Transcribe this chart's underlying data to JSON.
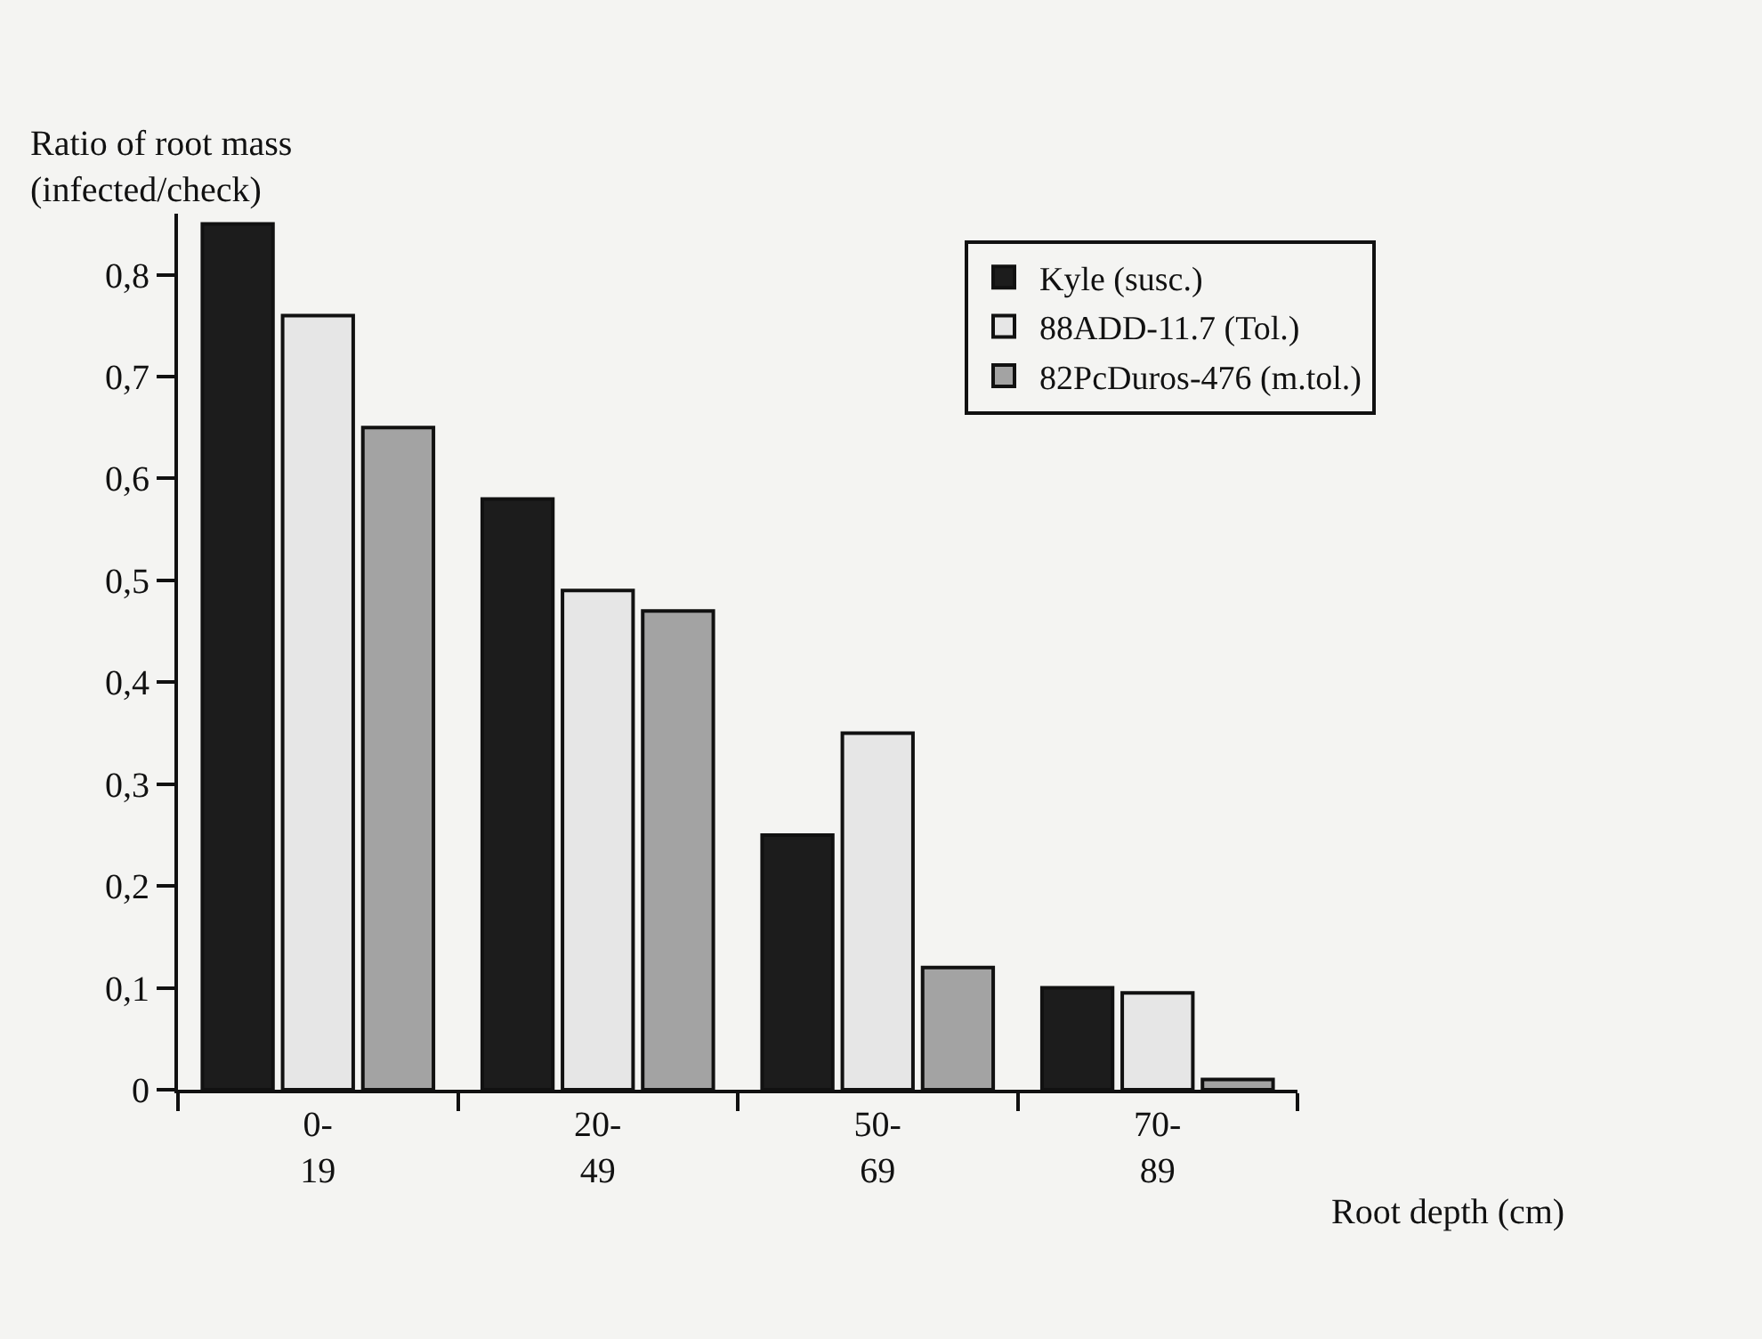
{
  "chart_data": {
    "type": "bar",
    "ylabel": "Ratio of root mass\n(infected/check)",
    "xlabel": "Root depth (cm)",
    "categories": [
      "0-\n19",
      "20-\n49",
      "50-\n69",
      "70-\n89"
    ],
    "series": [
      {
        "name": "Kyle (susc.)",
        "color": "#1c1c1c",
        "values": [
          0.85,
          0.58,
          0.25,
          0.1
        ]
      },
      {
        "name": "88ADD-11.7 (Tol.)",
        "color": "#e6e6e6",
        "values": [
          0.76,
          0.49,
          0.35,
          0.095
        ]
      },
      {
        "name": "82PcDuros-476 (m.tol.)",
        "color": "#a3a3a3",
        "values": [
          0.65,
          0.47,
          0.12,
          0.01
        ]
      }
    ],
    "ylim": [
      0,
      0.86
    ],
    "yticks": [
      0,
      {
        "value": 0.1,
        "label": "0,1"
      },
      {
        "value": 0.2,
        "label": "0,2"
      },
      {
        "value": 0.3,
        "label": "0,3"
      },
      {
        "value": 0.4,
        "label": "0,4"
      },
      {
        "value": 0.5,
        "label": "0,5"
      },
      {
        "value": 0.6,
        "label": "0,6"
      },
      {
        "value": 0.7,
        "label": "0,7"
      },
      {
        "value": 0.8,
        "label": "0,8"
      }
    ],
    "legend": "top right",
    "grid": false
  }
}
